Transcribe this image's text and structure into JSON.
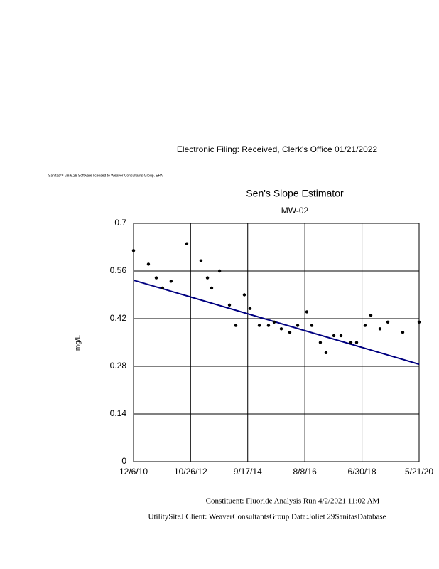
{
  "header": "Electronic   Filing:   Received,   Clerk's  Office  01/21/2022",
  "license": "Sanitas™  v.9.6.28  Software  licensed  to  Weaver  Consultants  Group.  EPA",
  "chart_data": {
    "type": "scatter",
    "title": "Sen's Slope Estimator",
    "subtitle": "MW-02",
    "y_label": "mg/L",
    "x": [
      "2010-12-06",
      "2011-06-04",
      "2011-09-07",
      "2011-11-22",
      "2012-03-04",
      "2012-09-10",
      "2013-03-01",
      "2013-05-18",
      "2013-07-08",
      "2013-10-12",
      "2014-02-08",
      "2014-04-26",
      "2014-08-07",
      "2014-10-15",
      "2015-02-04",
      "2015-05-26",
      "2015-08-03",
      "2015-10-28",
      "2016-02-08",
      "2016-05-13",
      "2016-09-01",
      "2016-10-31",
      "2017-02-11",
      "2017-04-21",
      "2017-07-25",
      "2017-10-19",
      "2018-02-16",
      "2018-04-26",
      "2018-08-07",
      "2018-10-15",
      "2019-02-03",
      "2019-05-09",
      "2019-11-05",
      "2020-05-21"
    ],
    "values": [
      0.62,
      0.58,
      0.54,
      0.51,
      0.53,
      0.64,
      0.59,
      0.54,
      0.51,
      0.56,
      0.46,
      0.4,
      0.49,
      0.45,
      0.4,
      0.4,
      0.41,
      0.39,
      0.38,
      0.4,
      0.44,
      0.4,
      0.35,
      0.32,
      0.37,
      0.37,
      0.35,
      0.35,
      0.4,
      0.43,
      0.39,
      0.41,
      0.38,
      0.41
    ],
    "color": "#000000",
    "trend_line": {
      "x": [
        "2010-12-06",
        "2020-05-21"
      ],
      "values": [
        0.533,
        0.286
      ],
      "color": "#000080"
    },
    "xlim": [
      "2010-12-06",
      "2020-05-21"
    ],
    "xticks": [
      {
        "value": "2010-12-06",
        "label": "12/6/10"
      },
      {
        "value": "2012-10-26",
        "label": "10/26/12"
      },
      {
        "value": "2014-09-17",
        "label": "9/17/14"
      },
      {
        "value": "2016-08-08",
        "label": "8/8/16"
      },
      {
        "value": "2018-06-30",
        "label": "6/30/18"
      },
      {
        "value": "2020-05-21",
        "label": "5/21/20"
      }
    ],
    "ylim": [
      0,
      0.7
    ],
    "yticks": [
      0,
      0.14,
      0.28,
      0.42,
      0.56,
      0.7
    ],
    "grid": true
  },
  "footer": {
    "line1": "Constituent:      Fluoride       Analysis    Run    4/2/2021      11:02     AM",
    "line2": "UtilitySiteJ      Client:    WeaverConsultantsGroup                  Data:Joliet       29SanitasDatabase"
  }
}
